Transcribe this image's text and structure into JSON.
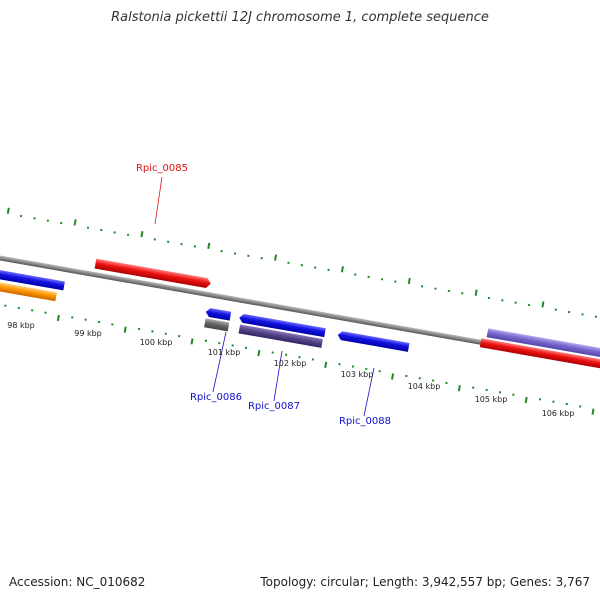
{
  "title": "Ralstonia pickettii 12J chromosome 1, complete sequence",
  "footer": {
    "accession": "Accession: NC_010682",
    "topology": "Topology: circular; Length: 3,942,557 bp; Genes: 3,767"
  },
  "scale": {
    "unit": "kbp",
    "labels": [
      "98 kbp",
      "99 kbp",
      "100 kbp",
      "101 kbp",
      "102 kbp",
      "103 kbp",
      "104 kbp",
      "105 kbp",
      "106 kbp"
    ]
  },
  "genes": [
    {
      "name": "Rpic_0085",
      "strand": "forward",
      "color": "#dd1111"
    },
    {
      "name": "Rpic_0086",
      "strand": "reverse",
      "color": "#1111cc"
    },
    {
      "name": "Rpic_0087",
      "strand": "reverse",
      "color": "#1111cc"
    },
    {
      "name": "Rpic_0088",
      "strand": "reverse",
      "color": "#1111cc"
    }
  ],
  "colors": {
    "backbone": "#888888",
    "ticks": "#228822",
    "forward_gene": "#ee1111",
    "reverse_gene": "#1111dd",
    "cds_orange": "#ff9900",
    "cds_purple": "#7766cc",
    "cds_darkpurple": "#554488",
    "cds_gray": "#666666"
  }
}
